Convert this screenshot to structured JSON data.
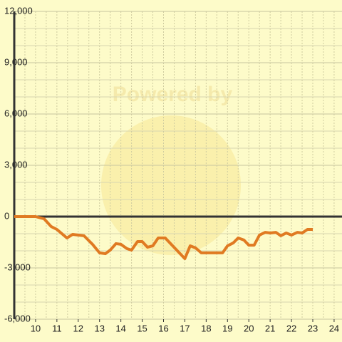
{
  "chart_data": {
    "type": "line",
    "watermark": "Powered by",
    "x": [
      9,
      10,
      10.4,
      10.73,
      11,
      11.47,
      11.74,
      12.27,
      12.67,
      13,
      13.27,
      13.5,
      13.77,
      14,
      14.28,
      14.5,
      14.78,
      15,
      15.25,
      15.5,
      15.75,
      16.08,
      17,
      17.25,
      17.5,
      17.77,
      18.77,
      19,
      19.27,
      19.5,
      19.77,
      20,
      20.25,
      20.5,
      20.77,
      21,
      21.27,
      21.5,
      21.75,
      22,
      22.28,
      22.5,
      22.75,
      23
    ],
    "series": [
      {
        "color": "#e07a22",
        "values": [
          0,
          0,
          -130,
          -580,
          -750,
          -1250,
          -1040,
          -1120,
          -1620,
          -2120,
          -2170,
          -1960,
          -1580,
          -1620,
          -1870,
          -1960,
          -1460,
          -1460,
          -1790,
          -1710,
          -1250,
          -1250,
          -2460,
          -1710,
          -1830,
          -2120,
          -2120,
          -1710,
          -1540,
          -1250,
          -1370,
          -1670,
          -1670,
          -1080,
          -920,
          -960,
          -920,
          -1120,
          -960,
          -1080,
          -920,
          -960,
          -750,
          -750
        ]
      }
    ],
    "xlim": [
      9,
      24.37
    ],
    "xticks": [
      10,
      11,
      12,
      13,
      14,
      15,
      16,
      17,
      18,
      19,
      20,
      21,
      22,
      23,
      24
    ],
    "ylim": [
      -6000,
      12000
    ],
    "yticks": [
      {
        "value": -6000,
        "label": "-6,000"
      },
      {
        "value": -3000,
        "label": "-3,000"
      },
      0,
      {
        "value": 3000,
        "label": "3,000"
      },
      {
        "value": 6000,
        "label": "6,000"
      },
      {
        "value": 9000,
        "label": "9,000"
      },
      {
        "value": 12000,
        "label": "12,000"
      }
    ],
    "grid": true
  }
}
